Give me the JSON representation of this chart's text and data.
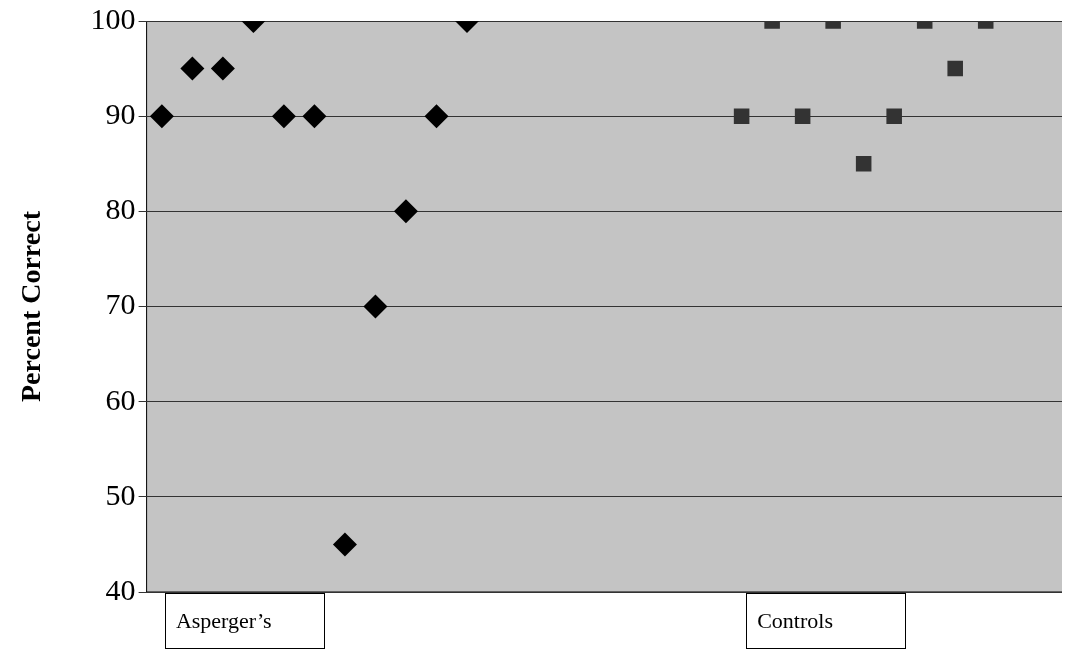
{
  "chart_data": {
    "type": "scatter",
    "ylabel": "Percent Correct",
    "categories": [
      null,
      null,
      null,
      null,
      null,
      null,
      null,
      null,
      null,
      null,
      null,
      null,
      null,
      null,
      null,
      null,
      null,
      null,
      null,
      null,
      null,
      null,
      null,
      null,
      null,
      null,
      null,
      null,
      null,
      null
    ],
    "series": [
      {
        "color": "#000000",
        "marker": "diamond",
        "values": [
          90,
          95,
          95,
          100,
          90,
          90,
          45,
          70,
          80,
          90,
          100,
          null,
          null,
          null,
          null,
          null,
          null,
          null,
          null,
          null,
          null,
          null,
          null,
          null,
          null,
          null,
          null,
          null,
          null,
          null
        ]
      },
      {
        "color": "#333333",
        "marker": "square",
        "values": [
          null,
          null,
          null,
          null,
          null,
          null,
          null,
          null,
          null,
          null,
          null,
          null,
          null,
          null,
          null,
          null,
          null,
          null,
          null,
          90,
          100,
          90,
          100,
          85,
          90,
          100,
          95,
          100,
          null,
          null
        ]
      }
    ],
    "ylim": [
      40,
      100
    ],
    "yticks": [
      40,
      50,
      60,
      70,
      80,
      90,
      100
    ],
    "grid": "y",
    "legend": false,
    "tick_labels": "y",
    "annotations": [
      "Asperger’s",
      "Controls"
    ]
  }
}
